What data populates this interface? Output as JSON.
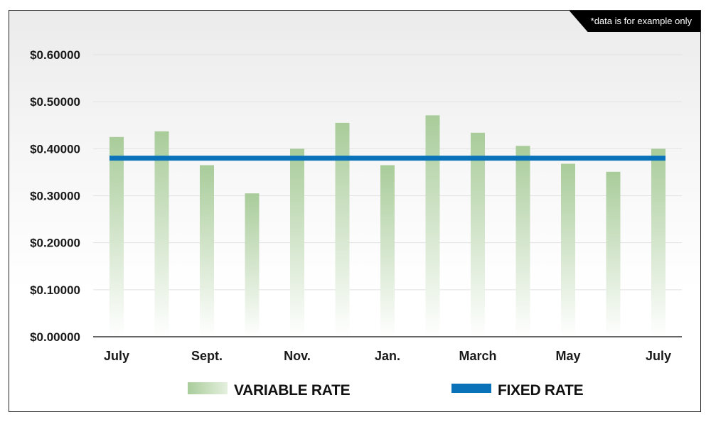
{
  "note": "*data is for example only",
  "colors": {
    "variable": "#a9cc9a",
    "fixed": "#0a72b8",
    "grid": "#e2e2e2",
    "axis": "#333333"
  },
  "chart_data": {
    "type": "bar",
    "title": "",
    "xlabel": "",
    "ylabel": "",
    "ylim": [
      0,
      0.6
    ],
    "y_ticks": [
      "$0.00000",
      "$0.10000",
      "$0.20000",
      "$0.30000",
      "$0.40000",
      "$0.50000",
      "$0.60000"
    ],
    "x_tick_labels": [
      "July",
      "Sept.",
      "Nov.",
      "Jan.",
      "March",
      "May",
      "July"
    ],
    "x_tick_positions": [
      0,
      2,
      4,
      6,
      8,
      10,
      12
    ],
    "grid": true,
    "legend_position": "bottom",
    "series": [
      {
        "name": "VARIABLE RATE",
        "type": "bar",
        "values": [
          0.425,
          0.437,
          0.365,
          0.305,
          0.4,
          0.455,
          0.365,
          0.471,
          0.434,
          0.406,
          0.368,
          0.351,
          0.4
        ]
      },
      {
        "name": "FIXED RATE",
        "type": "line",
        "values": [
          0.38,
          0.38
        ]
      }
    ]
  }
}
